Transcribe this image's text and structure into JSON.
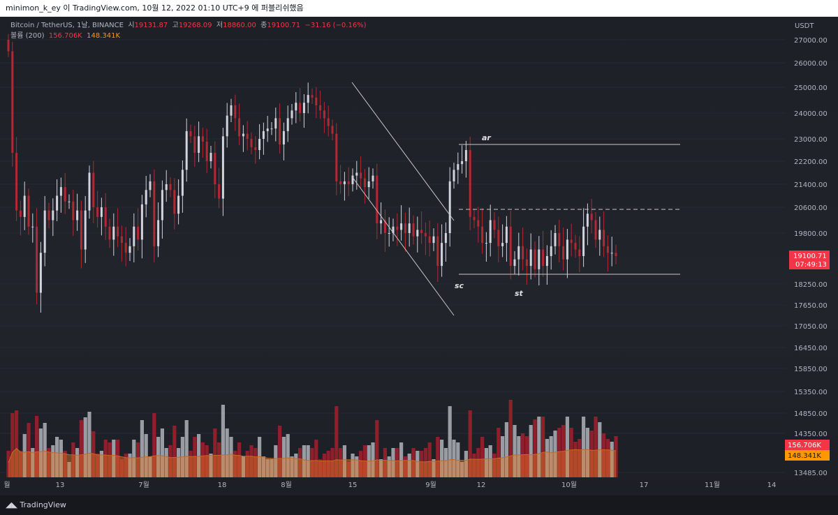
{
  "header": {
    "title": "minimon_k_ey 이 TradingView.com, 10월 12, 2022 01:10 UTC+9 에 퍼블리쉬했음"
  },
  "legend": {
    "symbol": "Bitcoin / TetherUS, 1날, BINANCE",
    "open_label": "시",
    "open": "19131.87",
    "high_label": "고",
    "high": "19268.09",
    "low_label": "저",
    "low": "18860.00",
    "close_label": "종",
    "close": "19100.71",
    "change": "−31.16 (−0.16%)",
    "volume_label": "볼륨 (200)",
    "volume": "156.706K",
    "volume_ma": "148.341K"
  },
  "footer": {
    "logo_text": "TradingView"
  },
  "colors": {
    "up": "#d1d4dc",
    "down": "#b22833",
    "price_tag": "#f23645",
    "ma_tag": "#ff9800",
    "annotation": "#c8c8c8"
  },
  "chart_data": {
    "type": "candlestick",
    "currency": "USDT",
    "y_ticks": [
      27000,
      26000,
      25000,
      24000,
      23000,
      22200,
      21400,
      20600,
      19800,
      18250,
      17650,
      17050,
      16450,
      15850,
      15350,
      14850,
      14350,
      13485
    ],
    "y_tick_labels": [
      "27000.00",
      "26000.00",
      "25000.00",
      "24000.00",
      "23000.00",
      "22200.00",
      "21400.00",
      "20600.00",
      "19800.00",
      "18250.00",
      "17650.00",
      "17050.00",
      "16450.00",
      "15850.00",
      "15350.00",
      "14850.00",
      "14350.00",
      "13485.00"
    ],
    "x_labels": [
      "월",
      "13",
      "7월",
      "18",
      "8월",
      "15",
      "9월",
      "12",
      "10월",
      "17",
      "11월",
      "14"
    ],
    "last_price": "19100.71",
    "countdown": "07:49:13",
    "volume_tag": "156.706K",
    "volume_ma_tag": "148.341K",
    "annotations": [
      "sc",
      "ar",
      "st"
    ],
    "candles_close": [
      26500,
      22500,
      20500,
      20300,
      21000,
      20000,
      20000,
      18000,
      19200,
      20500,
      20200,
      20500,
      21000,
      21300,
      20800,
      20800,
      20200,
      20500,
      19300,
      20500,
      21800,
      20600,
      20300,
      20600,
      20000,
      19600,
      20000,
      19700,
      19500,
      19200,
      19400,
      20000,
      19600,
      20700,
      21200,
      21500,
      19400,
      20200,
      21200,
      21400,
      21200,
      20400,
      21000,
      21900,
      23300,
      23100,
      22500,
      23100,
      22900,
      22200,
      22500,
      21400,
      20900,
      23100,
      23900,
      24300,
      23800,
      23100,
      23200,
      23000,
      22700,
      22600,
      23000,
      23300,
      23400,
      23400,
      23800,
      22800,
      23300,
      23800,
      24100,
      24400,
      24000,
      24400,
      24700,
      24600,
      24300,
      24100,
      23800,
      23500,
      23200,
      21500,
      21400,
      21500,
      21400,
      21700,
      21800,
      21600,
      21300,
      21500,
      21700,
      20100,
      20200,
      19800,
      19800,
      20000,
      19900,
      20100,
      19800,
      20100,
      19700,
      19900,
      19800,
      19700,
      19500,
      19700,
      18800,
      19500,
      19800,
      21500,
      21900,
      22100,
      22200,
      22600,
      20300,
      20200,
      20000,
      19500,
      19500,
      20200,
      19900,
      19400,
      19500,
      20000,
      18800,
      19000,
      19400,
      19000,
      18800,
      19300,
      18700,
      19300,
      18800,
      19100,
      19400,
      19800,
      19400,
      19000,
      19600,
      19500,
      19300,
      19100,
      20000,
      20400,
      20200,
      19600,
      19900,
      19400,
      19200,
      19200,
      19100
    ]
  }
}
